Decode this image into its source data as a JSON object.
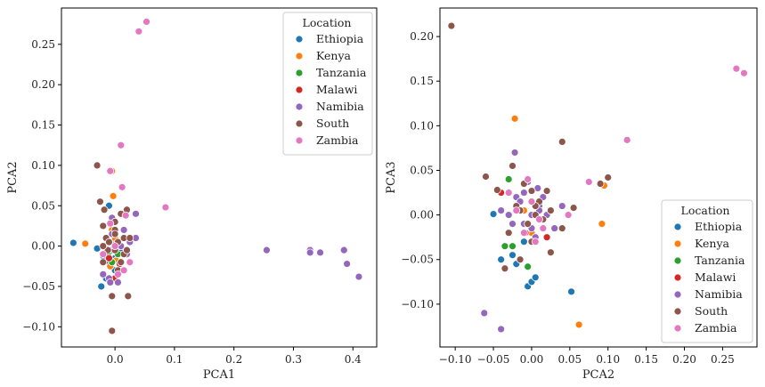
{
  "chart_data": [
    {
      "type": "scatter",
      "xlabel": "PCA1",
      "ylabel": "PCA2",
      "xlim": [
        -0.09,
        0.44
      ],
      "ylim": [
        -0.125,
        0.295
      ],
      "xticks": [
        0.0,
        0.1,
        0.2,
        0.3,
        0.4
      ],
      "xtick_labels": [
        "0.0",
        "0.1",
        "0.2",
        "0.3",
        "0.4"
      ],
      "yticks": [
        -0.1,
        -0.05,
        0.0,
        0.05,
        0.1,
        0.15,
        0.2,
        0.25
      ],
      "ytick_labels": [
        "−0.10",
        "−0.05",
        "0.00",
        "0.05",
        "0.10",
        "0.15",
        "0.20",
        "0.25"
      ],
      "legend": {
        "title": "Location",
        "position": "top-right"
      },
      "grid": false,
      "series": [
        {
          "name": "Ethiopia",
          "color": "#1f77b4",
          "points": [
            [
              -0.07,
              0.004
            ],
            [
              -0.03,
              -0.003
            ],
            [
              -0.02,
              -0.012
            ],
            [
              -0.023,
              -0.05
            ],
            [
              -0.015,
              -0.04
            ],
            [
              -0.01,
              -0.02
            ],
            [
              0.0,
              -0.03
            ],
            [
              -0.005,
              -0.005
            ],
            [
              0.005,
              0.005
            ],
            [
              -0.01,
              0.05
            ],
            [
              0.0,
              -0.015
            ],
            [
              0.01,
              -0.008
            ]
          ]
        },
        {
          "name": "Kenya",
          "color": "#ff7f0e",
          "points": [
            [
              -0.05,
              0.003
            ],
            [
              -0.005,
              0.093
            ],
            [
              -0.003,
              0.062
            ],
            [
              -0.01,
              0.005
            ],
            [
              0.0,
              0.01
            ],
            [
              -0.005,
              0.02
            ],
            [
              0.002,
              -0.018
            ],
            [
              -0.008,
              -0.025
            ]
          ]
        },
        {
          "name": "Tanzania",
          "color": "#2ca02c",
          "points": [
            [
              -0.012,
              -0.01
            ],
            [
              -0.005,
              -0.02
            ],
            [
              0.005,
              -0.01
            ],
            [
              0.0,
              0.002
            ]
          ]
        },
        {
          "name": "Malawi",
          "color": "#d62728",
          "points": [
            [
              0.0,
              -0.04
            ],
            [
              -0.01,
              -0.015
            ],
            [
              0.008,
              -0.022
            ]
          ]
        },
        {
          "name": "Namibia",
          "color": "#9467bd",
          "points": [
            [
              0.255,
              -0.005
            ],
            [
              0.328,
              -0.005
            ],
            [
              0.328,
              -0.008
            ],
            [
              0.345,
              -0.008
            ],
            [
              0.385,
              -0.005
            ],
            [
              0.39,
              -0.022
            ],
            [
              0.41,
              -0.038
            ],
            [
              -0.005,
              0.035
            ],
            [
              0.035,
              0.04
            ],
            [
              0.035,
              0.01
            ],
            [
              0.02,
              -0.01
            ],
            [
              -0.01,
              -0.04
            ],
            [
              -0.02,
              -0.035
            ],
            [
              0.005,
              -0.045
            ],
            [
              0.0,
              0.0
            ],
            [
              0.015,
              0.02
            ],
            [
              -0.005,
              0.015
            ],
            [
              0.025,
              0.005
            ],
            [
              -0.008,
              -0.045
            ],
            [
              0.01,
              0.0
            ],
            [
              -0.015,
              0.01
            ]
          ]
        },
        {
          "name": "South",
          "color": "#8c564b",
          "points": [
            [
              -0.03,
              0.1
            ],
            [
              -0.025,
              0.055
            ],
            [
              -0.02,
              0.025
            ],
            [
              -0.018,
              0.045
            ],
            [
              -0.015,
              0.01
            ],
            [
              -0.005,
              -0.105
            ],
            [
              0.0,
              -0.005
            ],
            [
              0.005,
              0.005
            ],
            [
              0.01,
              0.04
            ],
            [
              0.02,
              0.045
            ],
            [
              0.022,
              -0.062
            ],
            [
              -0.005,
              -0.062
            ],
            [
              0.0,
              0.02
            ],
            [
              0.015,
              0.01
            ],
            [
              0.015,
              -0.01
            ],
            [
              0.01,
              -0.02
            ],
            [
              -0.01,
              0.005
            ],
            [
              -0.02,
              -0.02
            ],
            [
              0.0,
              0.03
            ],
            [
              0.025,
              0.01
            ],
            [
              -0.012,
              -0.005
            ],
            [
              0.005,
              -0.03
            ],
            [
              0.02,
              -0.005
            ],
            [
              -0.02,
              0.0
            ],
            [
              0.0,
              0.015
            ]
          ]
        },
        {
          "name": "Zambia",
          "color": "#e377c2",
          "points": [
            [
              0.053,
              0.278
            ],
            [
              0.04,
              0.266
            ],
            [
              0.01,
              0.125
            ],
            [
              0.085,
              0.048
            ],
            [
              0.012,
              0.073
            ],
            [
              -0.008,
              0.093
            ],
            [
              0.018,
              0.038
            ],
            [
              -0.02,
              -0.01
            ],
            [
              0.025,
              -0.02
            ],
            [
              0.015,
              -0.03
            ],
            [
              0.005,
              -0.035
            ],
            [
              -0.008,
              0.028
            ],
            [
              0.0,
              0.0
            ]
          ]
        }
      ]
    },
    {
      "type": "scatter",
      "xlabel": "PCA2",
      "ylabel": "PCA3",
      "xlim": [
        -0.12,
        0.295
      ],
      "ylim": [
        -0.148,
        0.232
      ],
      "xticks": [
        -0.1,
        -0.05,
        0.0,
        0.05,
        0.1,
        0.15,
        0.2,
        0.25
      ],
      "xtick_labels": [
        "−0.10",
        "−0.05",
        "0.00",
        "0.05",
        "0.10",
        "0.15",
        "0.20",
        "0.25"
      ],
      "yticks": [
        -0.1,
        -0.05,
        0.0,
        0.05,
        0.1,
        0.15,
        0.2
      ],
      "ytick_labels": [
        "−0.10",
        "−0.05",
        "0.00",
        "0.05",
        "0.10",
        "0.15",
        "0.20"
      ],
      "legend": {
        "title": "Location",
        "position": "bottom-right"
      },
      "grid": false,
      "series": [
        {
          "name": "Ethiopia",
          "color": "#1f77b4",
          "points": [
            [
              -0.05,
              0.001
            ],
            [
              -0.04,
              -0.05
            ],
            [
              -0.025,
              -0.045
            ],
            [
              -0.02,
              -0.055
            ],
            [
              -0.005,
              -0.08
            ],
            [
              0.0,
              -0.075
            ],
            [
              0.005,
              -0.07
            ],
            [
              0.052,
              -0.086
            ],
            [
              -0.01,
              -0.03
            ],
            [
              0.0,
              -0.02
            ],
            [
              -0.03,
              0.0
            ],
            [
              0.0,
              0.0
            ]
          ]
        },
        {
          "name": "Kenya",
          "color": "#ff7f0e",
          "points": [
            [
              -0.022,
              0.108
            ],
            [
              0.062,
              -0.123
            ],
            [
              0.092,
              -0.01
            ],
            [
              0.095,
              0.033
            ],
            [
              -0.02,
              0.01
            ],
            [
              -0.01,
              0.005
            ],
            [
              0.0,
              -0.02
            ],
            [
              -0.03,
              0.0
            ]
          ]
        },
        {
          "name": "Tanzania",
          "color": "#2ca02c",
          "points": [
            [
              -0.03,
              0.04
            ],
            [
              -0.035,
              -0.035
            ],
            [
              -0.005,
              -0.058
            ],
            [
              -0.025,
              -0.035
            ]
          ]
        },
        {
          "name": "Malawi",
          "color": "#d62728",
          "points": [
            [
              -0.04,
              0.025
            ],
            [
              0.02,
              -0.025
            ],
            [
              -0.008,
              -0.02
            ]
          ]
        },
        {
          "name": "Namibia",
          "color": "#9467bd",
          "points": [
            [
              -0.062,
              -0.11
            ],
            [
              -0.04,
              -0.128
            ],
            [
              -0.022,
              0.07
            ],
            [
              -0.005,
              0.037
            ],
            [
              0.008,
              0.03
            ],
            [
              0.01,
              0.01
            ],
            [
              -0.04,
              0.005
            ],
            [
              -0.03,
              0.0
            ],
            [
              0.0,
              0.0
            ],
            [
              0.02,
              0.0
            ],
            [
              -0.01,
              -0.01
            ],
            [
              0.03,
              -0.015
            ],
            [
              -0.02,
              0.02
            ],
            [
              0.005,
              -0.025
            ],
            [
              -0.015,
              0.015
            ],
            [
              0.04,
              0.01
            ],
            [
              -0.01,
              0.025
            ],
            [
              0.015,
              0.02
            ],
            [
              -0.025,
              -0.01
            ],
            [
              0.0,
              -0.015
            ],
            [
              0.01,
              0.005
            ]
          ]
        },
        {
          "name": "South",
          "color": "#8c564b",
          "points": [
            [
              -0.105,
              0.212
            ],
            [
              0.04,
              0.082
            ],
            [
              -0.06,
              0.043
            ],
            [
              -0.045,
              0.028
            ],
            [
              -0.025,
              0.055
            ],
            [
              0.1,
              0.042
            ],
            [
              0.09,
              0.035
            ],
            [
              0.055,
              0.008
            ],
            [
              0.04,
              -0.015
            ],
            [
              0.025,
              -0.042
            ],
            [
              -0.015,
              -0.05
            ],
            [
              -0.035,
              -0.06
            ],
            [
              0.0,
              0.027
            ],
            [
              0.02,
              0.027
            ],
            [
              -0.01,
              0.035
            ],
            [
              0.01,
              0.015
            ],
            [
              -0.02,
              0.01
            ],
            [
              0.005,
              0.0
            ],
            [
              -0.005,
              -0.01
            ],
            [
              0.015,
              -0.005
            ],
            [
              -0.03,
              -0.02
            ],
            [
              0.0,
              -0.03
            ],
            [
              0.025,
              0.005
            ],
            [
              -0.015,
              0.005
            ],
            [
              0.005,
              0.01
            ]
          ]
        },
        {
          "name": "Zambia",
          "color": "#e377c2",
          "points": [
            [
              0.268,
              0.164
            ],
            [
              0.278,
              0.159
            ],
            [
              0.125,
              0.084
            ],
            [
              0.075,
              0.037
            ],
            [
              0.048,
              0.0
            ],
            [
              -0.005,
              0.04
            ],
            [
              -0.03,
              0.025
            ],
            [
              -0.02,
              0.005
            ],
            [
              0.01,
              -0.005
            ],
            [
              -0.01,
              -0.02
            ],
            [
              0.0,
              0.015
            ],
            [
              0.015,
              -0.015
            ],
            [
              0.005,
              -0.03
            ]
          ]
        }
      ]
    }
  ]
}
